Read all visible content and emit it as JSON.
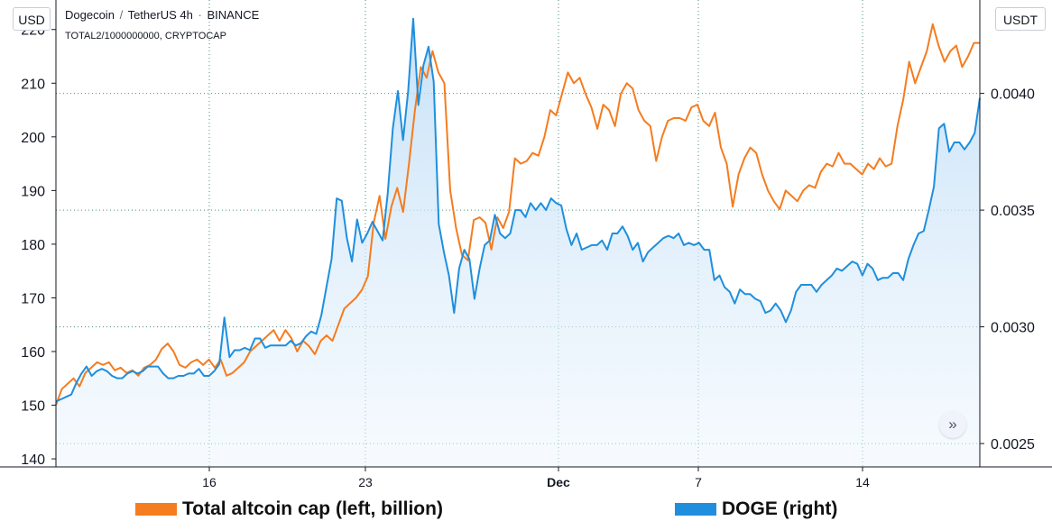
{
  "header": {
    "symbol": "Dogecoin",
    "quote": "TetherUS",
    "interval": "4h",
    "exchange": "BINANCE",
    "compare_symbol": "TOTAL2/1000000000, CRYPTOCAP"
  },
  "axes": {
    "left_unit": "USD",
    "right_unit": "USDT"
  },
  "colors": {
    "altcoin": "#f57c1f",
    "doge": "#1f8fdd",
    "area_top": "#cfe6f8",
    "grid": "#4a8f7a"
  },
  "controls": {
    "scroll_icon": "double-chevron-right-icon",
    "scroll_glyph": "»"
  },
  "chart_data": {
    "type": "line",
    "x_ticks": [
      "16",
      "23",
      "Dec",
      "7",
      "14"
    ],
    "y_left": {
      "label": "USD",
      "ticks": [
        140,
        150,
        160,
        170,
        180,
        190,
        200,
        210,
        220
      ],
      "range": [
        138.5,
        225.5
      ]
    },
    "y_right": {
      "label": "USDT",
      "ticks": [
        "0.0025",
        "0.0030",
        "0.0035",
        "0.0040"
      ],
      "tick_values": [
        0.0025,
        0.003,
        0.0035,
        0.004
      ],
      "range": [
        0.0024,
        0.0044
      ]
    },
    "grid": true,
    "legend_position": "bottom",
    "series": [
      {
        "name": "Total altcoin cap (left, billion)",
        "axis": "left",
        "values": [
          150,
          153,
          154,
          155,
          153.5,
          156,
          157,
          158,
          157.5,
          158,
          156.5,
          157,
          156,
          156.5,
          155.5,
          157,
          157.5,
          158.5,
          160.5,
          161.5,
          160,
          157.5,
          157,
          158,
          158.5,
          157.5,
          158.5,
          157,
          158.5,
          155.5,
          156,
          157,
          158,
          160,
          161,
          162,
          163,
          164,
          162,
          164,
          162.5,
          160,
          162,
          161,
          159.5,
          162,
          163,
          162,
          165,
          168,
          169,
          170,
          171.5,
          174,
          184,
          189,
          181,
          187,
          190.5,
          186,
          195,
          205,
          213,
          211,
          216,
          212,
          210,
          190,
          183,
          178,
          177,
          184.5,
          185,
          184,
          179,
          185,
          183,
          186,
          196,
          195,
          195.5,
          197,
          196.5,
          200,
          205,
          204,
          208,
          212,
          210,
          211,
          208,
          205.5,
          201.5,
          206,
          205,
          202,
          208,
          210,
          209,
          205,
          203,
          202,
          195.5,
          200,
          203,
          203.5,
          203.5,
          203,
          205.5,
          206,
          203,
          202,
          204.5,
          198,
          195,
          187,
          193,
          196,
          198,
          197,
          193,
          190,
          188,
          186.5,
          190,
          189,
          188,
          190,
          191,
          190.5,
          193.5,
          195,
          194.5,
          197,
          195,
          195,
          194,
          193,
          195,
          194,
          196,
          194.5,
          195,
          202,
          207,
          214,
          210,
          213,
          216,
          221,
          217,
          214,
          216,
          217,
          213,
          215,
          217.5,
          217.5
        ]
      },
      {
        "name": "DOGE (right)",
        "axis": "right",
        "values": [
          0.00268,
          0.00269,
          0.0027,
          0.00271,
          0.00276,
          0.0028,
          0.00283,
          0.00279,
          0.00281,
          0.00282,
          0.00281,
          0.00279,
          0.00278,
          0.00278,
          0.0028,
          0.00281,
          0.0028,
          0.00281,
          0.00283,
          0.00283,
          0.00283,
          0.0028,
          0.00278,
          0.00278,
          0.00279,
          0.00279,
          0.0028,
          0.0028,
          0.00282,
          0.00279,
          0.00279,
          0.00281,
          0.00284,
          0.00304,
          0.00287,
          0.0029,
          0.0029,
          0.00291,
          0.0029,
          0.00295,
          0.00295,
          0.00291,
          0.00292,
          0.00292,
          0.00292,
          0.00292,
          0.00294,
          0.00292,
          0.00293,
          0.00296,
          0.00298,
          0.00297,
          0.00305,
          0.00317,
          0.00329,
          0.00355,
          0.00354,
          0.00338,
          0.00328,
          0.00346,
          0.00336,
          0.0034,
          0.00345,
          0.00341,
          0.00337,
          0.00357,
          0.00385,
          0.00401,
          0.0038,
          0.00401,
          0.00432,
          0.00395,
          0.00412,
          0.0042,
          0.00405,
          0.00344,
          0.00332,
          0.00322,
          0.00306,
          0.00325,
          0.00333,
          0.00329,
          0.00312,
          0.00325,
          0.00335,
          0.00337,
          0.00348,
          0.0034,
          0.00338,
          0.0034,
          0.0035,
          0.0035,
          0.00347,
          0.00353,
          0.0035,
          0.00353,
          0.0035,
          0.00355,
          0.00353,
          0.00352,
          0.00342,
          0.00335,
          0.0034,
          0.00333,
          0.00334,
          0.00335,
          0.00335,
          0.00337,
          0.00333,
          0.0034,
          0.0034,
          0.00343,
          0.00339,
          0.00333,
          0.00336,
          0.00328,
          0.00332,
          0.00334,
          0.00336,
          0.00338,
          0.00339,
          0.00338,
          0.0034,
          0.00335,
          0.00336,
          0.00335,
          0.00336,
          0.00333,
          0.00333,
          0.0032,
          0.00322,
          0.00317,
          0.00315,
          0.0031,
          0.00316,
          0.00314,
          0.00314,
          0.00312,
          0.00311,
          0.00306,
          0.00307,
          0.0031,
          0.00307,
          0.00302,
          0.00307,
          0.00315,
          0.00318,
          0.00318,
          0.00318,
          0.00315,
          0.00318,
          0.0032,
          0.00322,
          0.00325,
          0.00324,
          0.00326,
          0.00328,
          0.00327,
          0.00322,
          0.00327,
          0.00325,
          0.0032,
          0.00321,
          0.00321,
          0.00323,
          0.00323,
          0.0032,
          0.00329,
          0.00335,
          0.0034,
          0.00341,
          0.0035,
          0.0036,
          0.00385,
          0.00387,
          0.00375,
          0.00379,
          0.00379,
          0.00376,
          0.00379,
          0.00383,
          0.00398
        ]
      }
    ]
  }
}
